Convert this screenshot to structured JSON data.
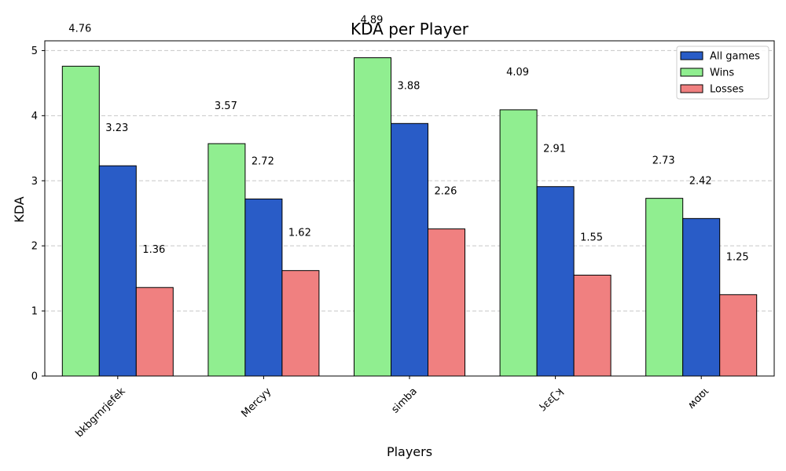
{
  "chart_data": {
    "type": "bar",
    "title": "KDA per Player",
    "xlabel": "Players",
    "ylabel": "KDA",
    "categories": [
      "bkbgrnrjefek",
      "Mercyy",
      "simba",
      "ʖɛɛʗʞ",
      "ʍɑʊɩ"
    ],
    "series": [
      {
        "name": "Wins",
        "values": [
          4.76,
          3.57,
          4.89,
          4.09,
          2.73
        ],
        "color": "#90ee90"
      },
      {
        "name": "All games",
        "values": [
          3.23,
          2.72,
          3.88,
          2.91,
          2.42
        ],
        "color": "#295cc7"
      },
      {
        "name": "Losses",
        "values": [
          1.36,
          1.62,
          2.26,
          1.55,
          1.25
        ],
        "color": "#f08080"
      }
    ],
    "data_labels": {
      "Wins": [
        "4.76",
        "3.57",
        "4.89",
        "4.09",
        "2.73"
      ],
      "All games": [
        "3.23",
        "2.72",
        "3.88",
        "2.91",
        "2.42"
      ],
      "Losses": [
        "1.36",
        "1.62",
        "2.26",
        "1.55",
        "1.25"
      ]
    },
    "legend_order": [
      "All games",
      "Wins",
      "Losses"
    ],
    "legend_position": "top-right",
    "ylim": [
      0,
      5.15
    ],
    "yticks": [
      0,
      1,
      2,
      3,
      4,
      5
    ],
    "grid": "y-dashed"
  }
}
